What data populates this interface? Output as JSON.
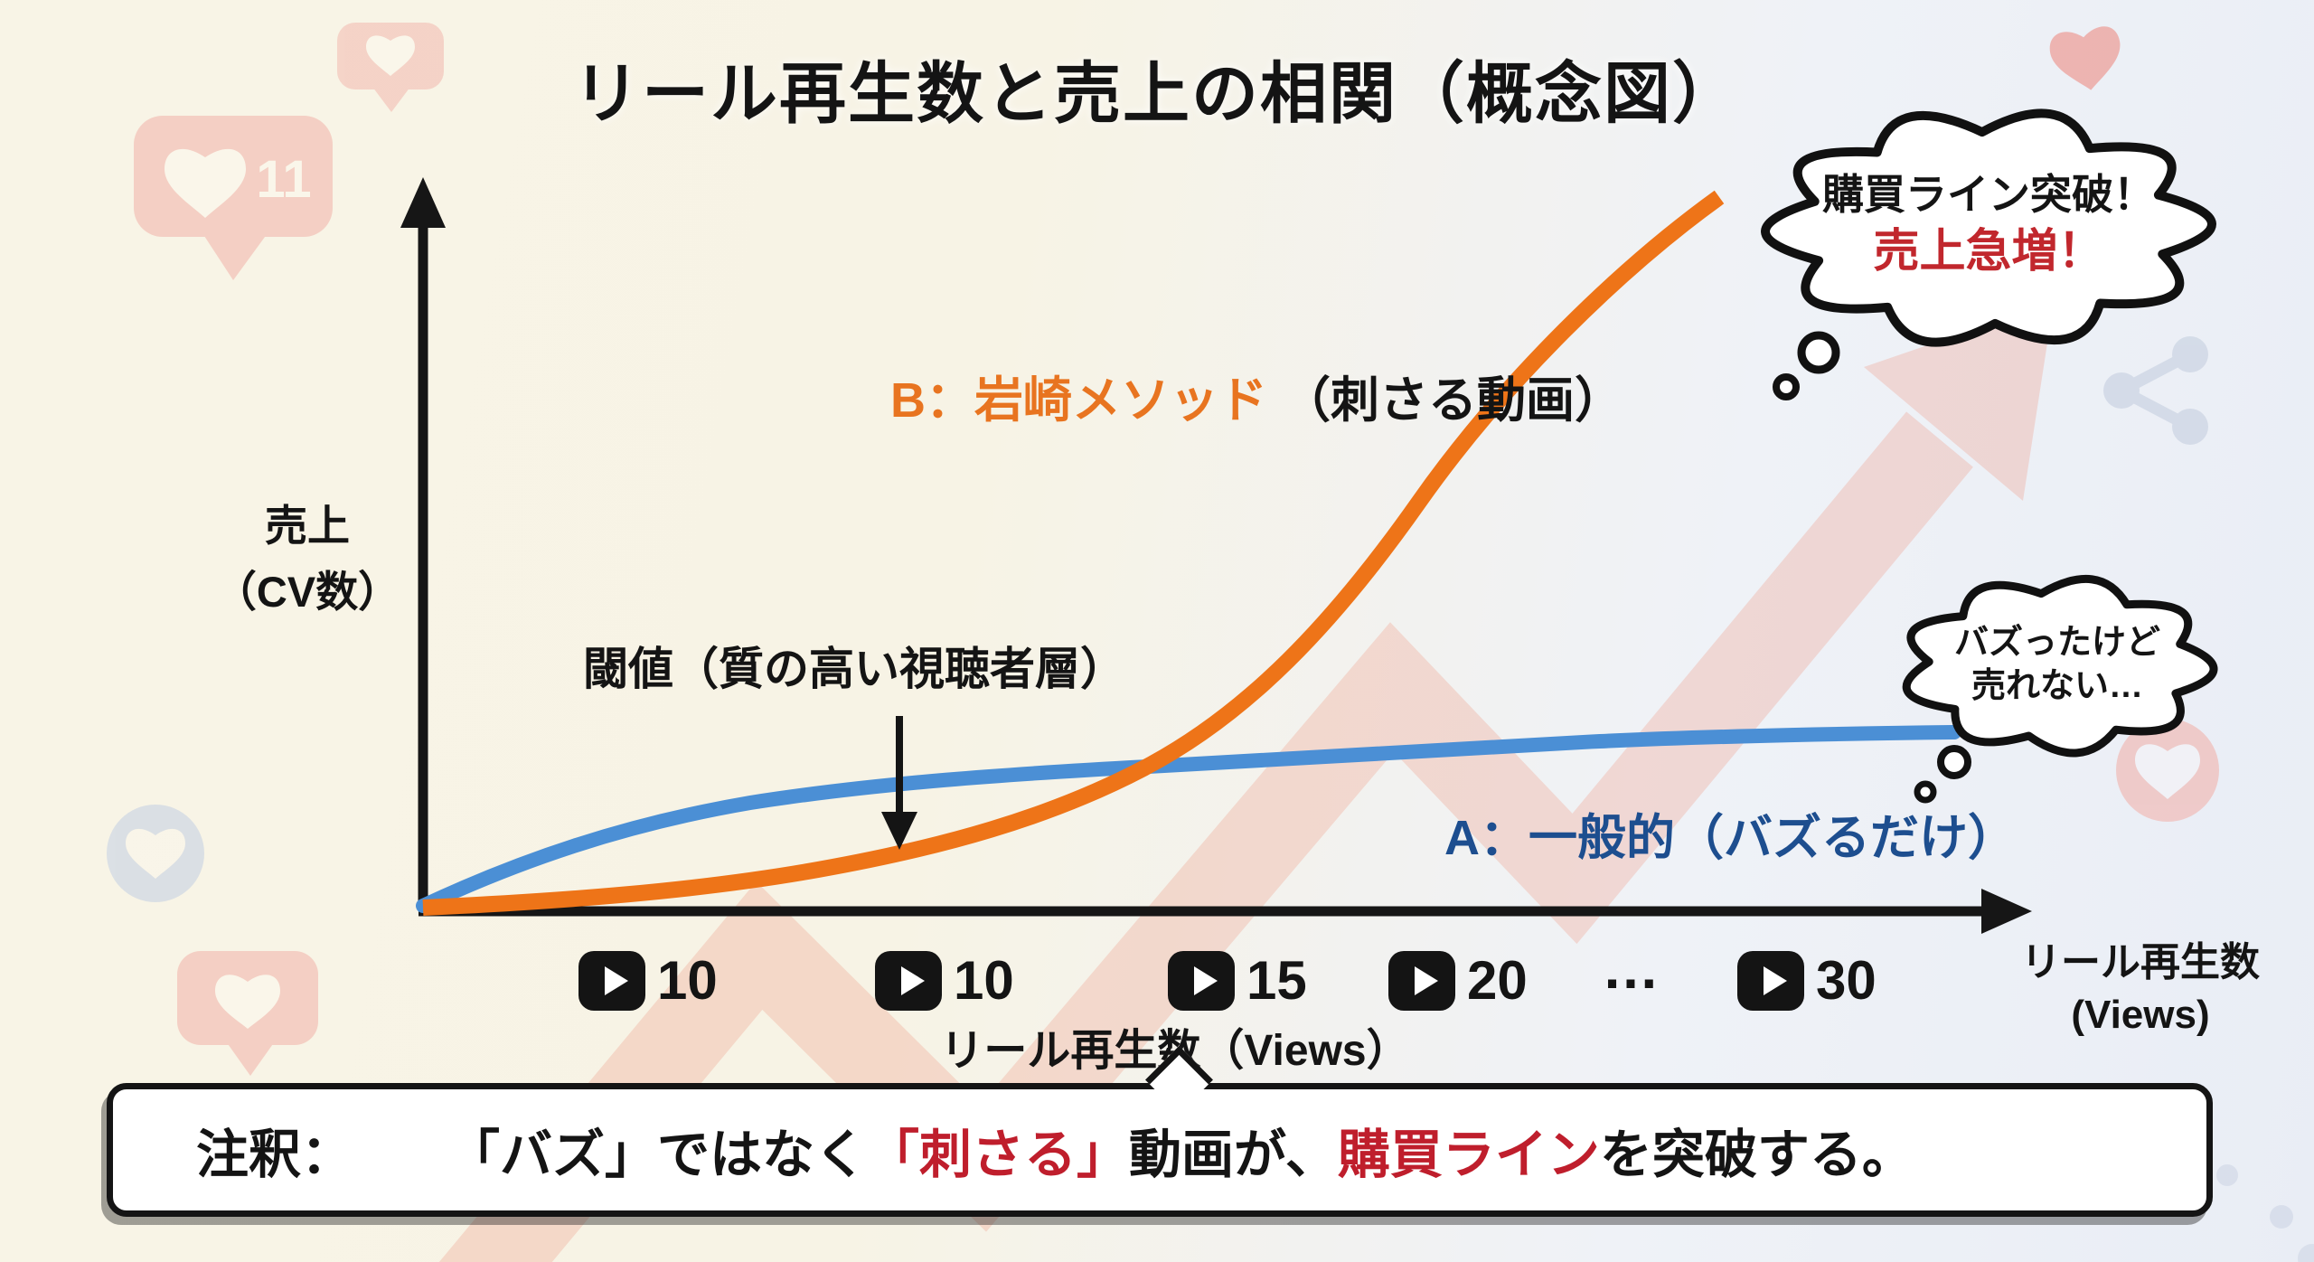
{
  "title": "リール再生数と売上の相関（概念図）",
  "y_axis": {
    "line1": "売上",
    "line2": "（CV数）"
  },
  "x_axis": {
    "label": "リール再生数（Views）",
    "end_line1": "リール再生数",
    "end_line2": "(Views)"
  },
  "ticks": [
    {
      "icon": "play-button",
      "label": "10"
    },
    {
      "icon": "play-button",
      "label": "10"
    },
    {
      "icon": "play-button",
      "label": "15"
    },
    {
      "icon": "play-button",
      "label": "20"
    },
    {
      "icon": "none",
      "label": "…"
    },
    {
      "icon": "play-button",
      "label": "30"
    }
  ],
  "series_labels": {
    "b_name": "B：岩崎メソッド",
    "b_suffix": "（刺さる動画）",
    "b_color": "#e87420",
    "a_name": "A：一般的（バズるだけ）",
    "a_color": "#1d4e8f"
  },
  "threshold_label": "閾値（質の高い視聴者層）",
  "bubble_top": {
    "line1": "購買ライン突破！",
    "line2": "売上急増！",
    "line2_color": "#c1272d"
  },
  "bubble_right": {
    "line1": "バズったけど",
    "line2": "売れない…"
  },
  "note": {
    "prefix": "注釈：",
    "seg1": "「バズ」ではなく",
    "seg2": "「刺さる」",
    "seg3": "動画が、",
    "seg4": "購買ライン",
    "seg5": "を突破する。",
    "accent_color": "#bf1e2c"
  },
  "background": {
    "like_count": "11"
  },
  "chart_data": {
    "type": "line",
    "title": "リール再生数と売上の相関（概念図）",
    "xlabel": "リール再生数（Views）",
    "ylabel": "売上（CV数）",
    "axes_numeric": false,
    "grid": false,
    "legend_position": "inline-labels",
    "x_tick_labels": [
      "10",
      "10",
      "15",
      "20",
      "…",
      "30"
    ],
    "x_tick_icon": "play-button",
    "x_norm": [
      0,
      1,
      2,
      3,
      4,
      5,
      6,
      7,
      8,
      9,
      10
    ],
    "series": [
      {
        "name": "A：一般的（バズるだけ）",
        "color": "#4b8fd5",
        "shape": "logarithmic-plateau",
        "values_norm": [
          0,
          22,
          33,
          39,
          42,
          44,
          45,
          46,
          46.5,
          47,
          47.5
        ]
      },
      {
        "name": "B：岩崎メソッド（刺さる動画）",
        "color": "#ee7418",
        "shape": "exponential",
        "values_norm": [
          0,
          1,
          3,
          6,
          10,
          18,
          30,
          48,
          70,
          88,
          100
        ]
      }
    ],
    "annotations": [
      {
        "text": "閾値（質の高い視聴者層）",
        "type": "arrow-callout",
        "target": "B curve threshold point"
      },
      {
        "text": "購買ライン突破！ 売上急増！",
        "type": "thought-bubble",
        "near": "top end of B curve"
      },
      {
        "text": "バズったけど売れない…",
        "type": "thought-bubble",
        "near": "flat end of A curve"
      },
      {
        "text": "注釈： 「バズ」ではなく「刺さる」動画が、購買ラインを突破する。",
        "type": "footnote"
      }
    ]
  }
}
